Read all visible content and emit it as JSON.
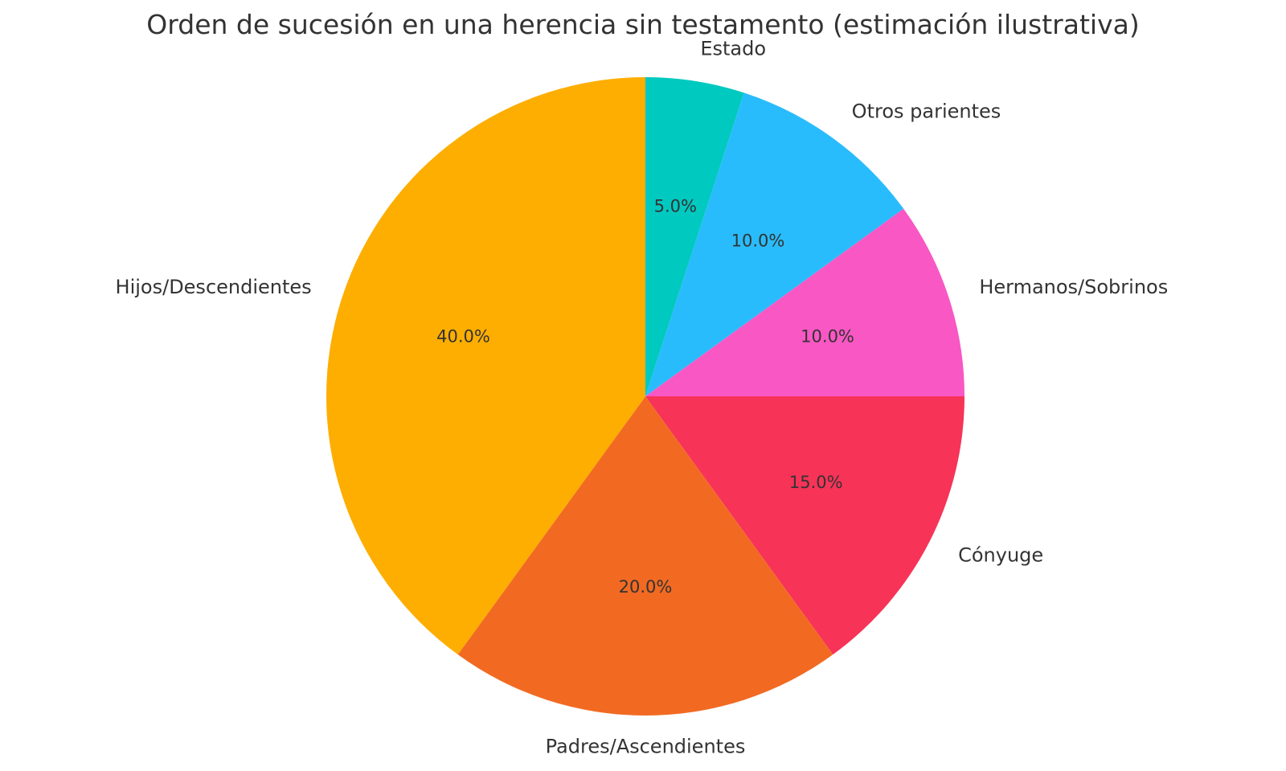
{
  "chart_data": {
    "type": "pie",
    "title": "Orden de sucesión en una herencia sin testamento (estimación ilustrativa)",
    "start_angle_deg": 90,
    "direction": "clockwise",
    "slices": [
      {
        "label": "Estado",
        "value": 5.0,
        "pct_label": "5.0%",
        "color": "#00c9c0"
      },
      {
        "label": "Otros parientes",
        "value": 10.0,
        "pct_label": "10.0%",
        "color": "#29bcfc"
      },
      {
        "label": "Hermanos/Sobrinos",
        "value": 10.0,
        "pct_label": "10.0%",
        "color": "#f857c4"
      },
      {
        "label": "Cónyuge",
        "value": 15.0,
        "pct_label": "15.0%",
        "color": "#f73358"
      },
      {
        "label": "Padres/Ascendientes",
        "value": 20.0,
        "pct_label": "20.0%",
        "color": "#f26a22"
      },
      {
        "label": "Hijos/Descendientes",
        "value": 40.0,
        "pct_label": "40.0%",
        "color": "#fdae00"
      }
    ]
  }
}
